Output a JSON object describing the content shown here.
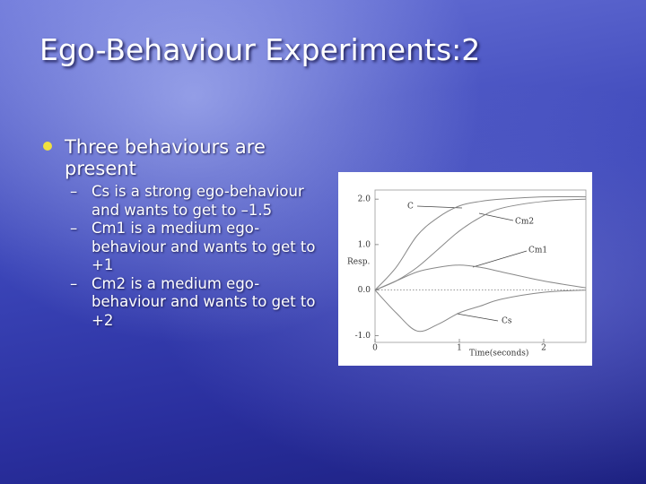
{
  "title": "Ego-Behaviour Experiments:2",
  "bullets": [
    {
      "text": "Three behaviours are present",
      "subitems": [
        "Cs is a strong ego-behaviour and wants to get to –1.5",
        "Cm1 is a medium ego-behaviour and wants to get to +1",
        "Cm2 is a medium ego-behaviour and wants to get to +2"
      ]
    }
  ],
  "figure": {
    "type": "line",
    "ylabel": "Resp.",
    "xlabel": "Time(seconds)",
    "x": [
      0,
      0.25,
      0.5,
      0.75,
      1,
      1.25,
      1.5,
      2,
      2.5
    ],
    "xlim": [
      0,
      2.5
    ],
    "xticks": [
      0,
      1,
      2
    ],
    "ylim": [
      -1.15,
      2.2
    ],
    "yticks": [
      {
        "value": 2,
        "label": "2.0"
      },
      {
        "value": 1,
        "label": "1.0"
      },
      {
        "value": 0,
        "label": "0.0"
      },
      {
        "value": -1,
        "label": "-1.0"
      }
    ],
    "series": [
      {
        "name": "C",
        "color": "#888888",
        "values": [
          0,
          0.5,
          1.2,
          1.6,
          1.85,
          1.95,
          2.0,
          2.05,
          2.05
        ]
      },
      {
        "name": "Cm2",
        "color": "#888888",
        "values": [
          0,
          0.2,
          0.5,
          0.9,
          1.3,
          1.6,
          1.8,
          1.95,
          2.0
        ]
      },
      {
        "name": "Cm1",
        "color": "#888888",
        "values": [
          0,
          0.2,
          0.4,
          0.5,
          0.55,
          0.5,
          0.4,
          0.2,
          0.05
        ]
      },
      {
        "name": "Cs",
        "color": "#888888",
        "values": [
          0,
          -0.5,
          -0.9,
          -0.75,
          -0.5,
          -0.35,
          -0.2,
          -0.05,
          0
        ]
      }
    ]
  }
}
